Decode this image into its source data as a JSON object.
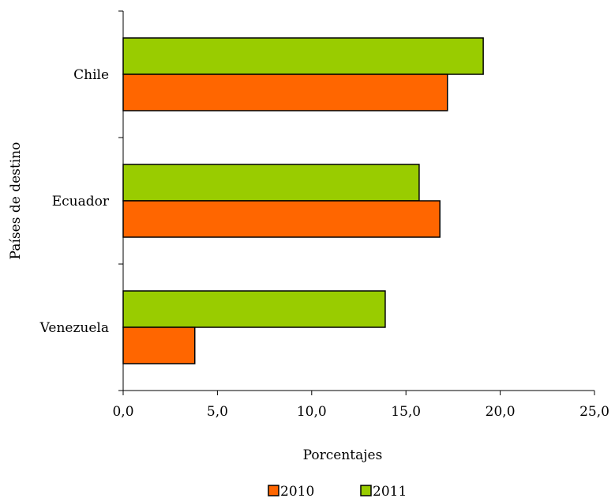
{
  "chart_data": {
    "type": "bar",
    "orientation": "horizontal",
    "categories": [
      "Chile",
      "Ecuador",
      "Venezuela"
    ],
    "series": [
      {
        "name": "2010",
        "color": "#FF6600",
        "values": [
          17.2,
          16.8,
          3.8
        ]
      },
      {
        "name": "2011",
        "color": "#99CC00",
        "values": [
          19.1,
          15.7,
          13.9
        ]
      }
    ],
    "xlabel": "Porcentajes",
    "ylabel": "Países de destino",
    "xlim": [
      0,
      25
    ],
    "xticks": [
      0,
      5,
      10,
      15,
      20,
      25
    ],
    "xtick_labels": [
      "0,0",
      "5,0",
      "10,0",
      "15,0",
      "20,0",
      "25,0"
    ],
    "grid": false,
    "legend_position": "bottom"
  }
}
